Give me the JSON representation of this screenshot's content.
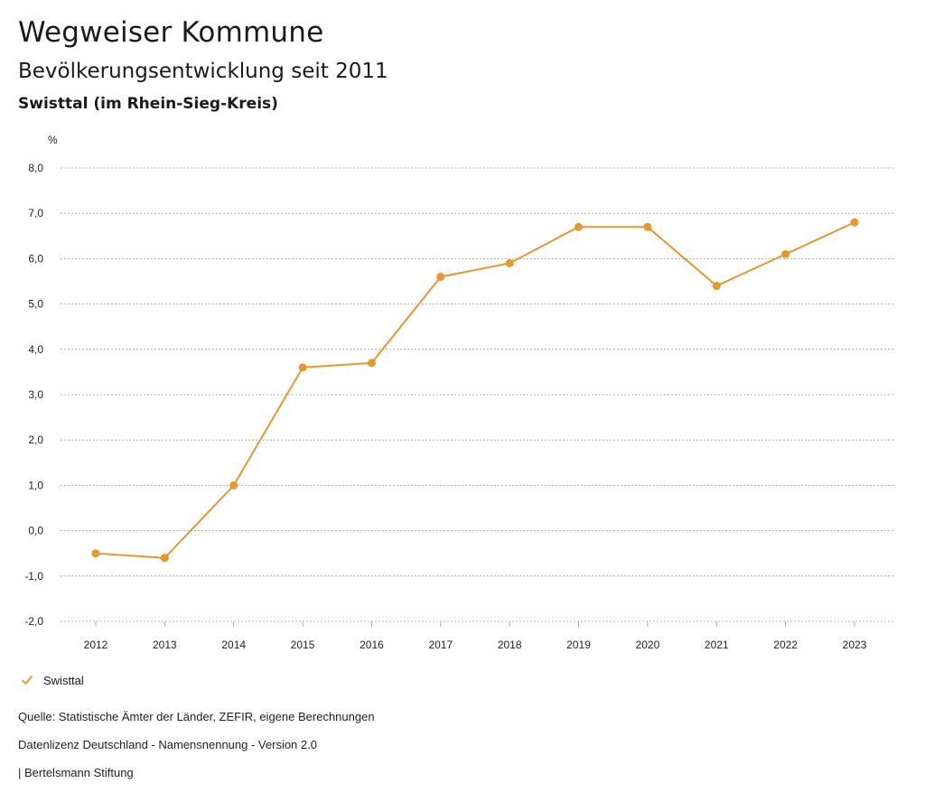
{
  "header": {
    "title": "Wegweiser Kommune",
    "subtitle": "Bevölkerungsentwicklung seit 2011",
    "region": "Swisttal (im Rhein-Sieg-Kreis)"
  },
  "chart_data": {
    "type": "line",
    "unit": "%",
    "categories": [
      "2012",
      "2013",
      "2014",
      "2015",
      "2016",
      "2017",
      "2018",
      "2019",
      "2020",
      "2021",
      "2022",
      "2023"
    ],
    "series": [
      {
        "name": "Swisttal",
        "color": "#e8962e",
        "values": [
          -0.5,
          -0.6,
          1.0,
          3.6,
          3.7,
          5.6,
          5.9,
          6.7,
          6.7,
          5.4,
          6.1,
          6.8
        ]
      }
    ],
    "ylim": [
      -2.0,
      8.0
    ],
    "yticks": [
      "-2,0",
      "-1,0",
      "0,0",
      "1,0",
      "2,0",
      "3,0",
      "4,0",
      "5,0",
      "6,0",
      "7,0",
      "8,0"
    ],
    "grid": true,
    "legend_position": "bottom-left"
  },
  "legend": {
    "label": "Swisttal",
    "icon": "check-icon"
  },
  "footer": {
    "source": "Quelle: Statistische Ämter der Länder, ZEFIR, eigene Berechnungen",
    "license": "Datenlizenz Deutschland - Namensnennung - Version 2.0",
    "publisher": "| Bertelsmann Stiftung"
  }
}
